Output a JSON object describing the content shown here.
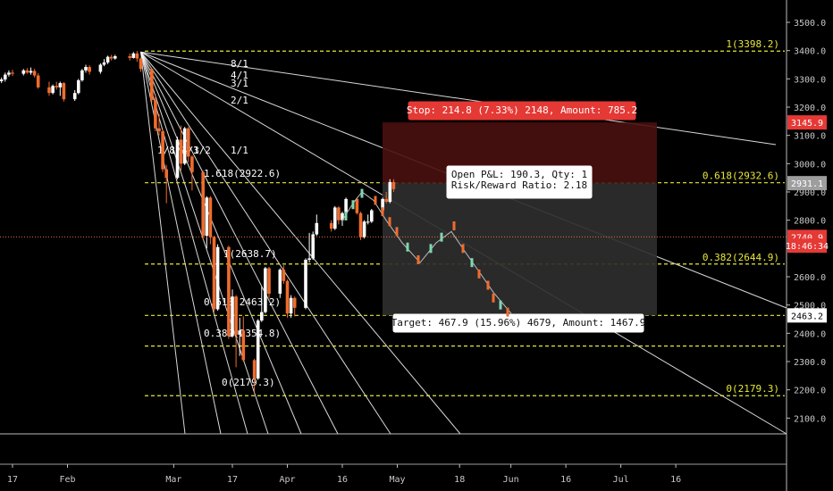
{
  "chart_data": {
    "type": "candlestick",
    "ylim": [
      2040,
      3540
    ],
    "xlabel": "",
    "ylabel": "",
    "title": "",
    "grid": false,
    "x_ticks": [
      {
        "label": "17",
        "date": "2020-01-17"
      },
      {
        "label": "Feb",
        "date": "2020-02-01"
      },
      {
        "label": "Mar",
        "date": "2020-03-01"
      },
      {
        "label": "17",
        "date": "2020-03-17"
      },
      {
        "label": "Apr",
        "date": "2020-04-01"
      },
      {
        "label": "16",
        "date": "2020-04-16"
      },
      {
        "label": "May",
        "date": "2020-05-01"
      },
      {
        "label": "18",
        "date": "2020-05-18"
      },
      {
        "label": "Jun",
        "date": "2020-06-01"
      },
      {
        "label": "16",
        "date": "2020-06-16"
      },
      {
        "label": "Jul",
        "date": "2020-07-01"
      },
      {
        "label": "16",
        "date": "2020-07-16"
      }
    ],
    "y_ticks": [
      2100,
      2200,
      2300,
      2400,
      2500,
      2600,
      2700,
      2800,
      2900,
      3000,
      3100,
      3200,
      3300,
      3400,
      3500
    ],
    "y_tick_labels": [
      "2100.0",
      "2200.0",
      "2300.0",
      "2400.0",
      "2500.0",
      "2600.0",
      "2700.0",
      "2800.0",
      "2900.0",
      "3000.0",
      "3100.0",
      "3200.0",
      "3300.0",
      "3400.0",
      "3500.0"
    ],
    "price_tags": [
      {
        "label": "3145.9",
        "value": 3145.9,
        "color": "#e53935"
      },
      {
        "label": "2931.1",
        "value": 2931.1,
        "color": "#9e9e9e"
      },
      {
        "label": "2740.9",
        "value": 2740.9,
        "color": "#e53935"
      },
      {
        "label": "18:46:34",
        "value": 2710,
        "color": "#e53935"
      },
      {
        "label": "2463.2",
        "value": 2463.2,
        "color": "#ffffff"
      }
    ],
    "current_price": 2740.9,
    "colors": {
      "up": "#ffffff",
      "down": "#ef6c2d",
      "fib": "#e8e83a",
      "fan": "#ffffff",
      "stop": "#e53935",
      "target_zone": "#3a3a3a"
    },
    "fib_levels_right": [
      {
        "label": "1(3398.2)",
        "value": 3398.2
      },
      {
        "label": "0.618(2932.6)",
        "value": 2932.6
      },
      {
        "label": "0.382(2644.9)",
        "value": 2644.9
      },
      {
        "label": "0(2179.3)",
        "value": 2179.3
      }
    ],
    "fib_levels_left": [
      {
        "label": "1.618(2922.6)",
        "value": 2922.6
      },
      {
        "label": "1(2638.7)",
        "value": 2638.7
      },
      {
        "label": "0.618(2463.2)",
        "value": 2463.2
      },
      {
        "label": "0.382(2354.8)",
        "value": 2354.8
      },
      {
        "label": "0(2179.3)",
        "value": 2179.3
      }
    ],
    "gann_fan": {
      "origin": {
        "date": "2020-02-21",
        "value": 3395
      },
      "labels": [
        "8/1",
        "4/1",
        "3/1",
        "2/1",
        "1/1",
        "1/8",
        "1/4",
        "1/3",
        "1/2"
      ]
    },
    "position": {
      "stop_text": "Stop: 214.8 (7.33%) 2148, Amount: 785.2",
      "pnl_text": "Open P&L: 190.3, Qty: 1",
      "rr_text": "Risk/Reward Ratio: 2.18",
      "target_text": "Target: 467.9 (15.96%) 4679, Amount: 1467.9",
      "entry": 2931.1,
      "stop": 3145.9,
      "target": 2463.2,
      "start_date": "2020-04-20",
      "end_date": "2020-06-30"
    },
    "candles": [
      {
        "date": "2020-01-13",
        "o": 3285,
        "h": 3300,
        "l": 3278,
        "c": 3292
      },
      {
        "date": "2020-01-14",
        "o": 3292,
        "h": 3305,
        "l": 3285,
        "c": 3298
      },
      {
        "date": "2020-01-15",
        "o": 3298,
        "h": 3322,
        "l": 3290,
        "c": 3315
      },
      {
        "date": "2020-01-16",
        "o": 3315,
        "h": 3330,
        "l": 3308,
        "c": 3322
      },
      {
        "date": "2020-01-17",
        "o": 3322,
        "h": 3332,
        "l": 3310,
        "c": 3318
      },
      {
        "date": "2020-01-20",
        "o": 3318,
        "h": 3335,
        "l": 3312,
        "c": 3330
      },
      {
        "date": "2020-01-21",
        "o": 3330,
        "h": 3338,
        "l": 3318,
        "c": 3322
      },
      {
        "date": "2020-01-22",
        "o": 3322,
        "h": 3340,
        "l": 3315,
        "c": 3328
      },
      {
        "date": "2020-01-23",
        "o": 3328,
        "h": 3335,
        "l": 3305,
        "c": 3312
      },
      {
        "date": "2020-01-24",
        "o": 3312,
        "h": 3320,
        "l": 3265,
        "c": 3270
      },
      {
        "date": "2020-01-27",
        "o": 3270,
        "h": 3290,
        "l": 3240,
        "c": 3250
      },
      {
        "date": "2020-01-28",
        "o": 3250,
        "h": 3280,
        "l": 3245,
        "c": 3275
      },
      {
        "date": "2020-01-29",
        "o": 3275,
        "h": 3290,
        "l": 3262,
        "c": 3270
      },
      {
        "date": "2020-01-30",
        "o": 3270,
        "h": 3290,
        "l": 3240,
        "c": 3285
      },
      {
        "date": "2020-01-31",
        "o": 3285,
        "h": 3288,
        "l": 3220,
        "c": 3228
      },
      {
        "date": "2020-02-03",
        "o": 3228,
        "h": 3260,
        "l": 3222,
        "c": 3250
      },
      {
        "date": "2020-02-04",
        "o": 3250,
        "h": 3300,
        "l": 3245,
        "c": 3295
      },
      {
        "date": "2020-02-05",
        "o": 3295,
        "h": 3335,
        "l": 3290,
        "c": 3330
      },
      {
        "date": "2020-02-06",
        "o": 3330,
        "h": 3350,
        "l": 3322,
        "c": 3342
      },
      {
        "date": "2020-02-07",
        "o": 3342,
        "h": 3348,
        "l": 3315,
        "c": 3325
      },
      {
        "date": "2020-02-10",
        "o": 3325,
        "h": 3355,
        "l": 3318,
        "c": 3350
      },
      {
        "date": "2020-02-11",
        "o": 3350,
        "h": 3370,
        "l": 3345,
        "c": 3358
      },
      {
        "date": "2020-02-12",
        "o": 3358,
        "h": 3382,
        "l": 3352,
        "c": 3378
      },
      {
        "date": "2020-02-13",
        "o": 3378,
        "h": 3385,
        "l": 3365,
        "c": 3372
      },
      {
        "date": "2020-02-14",
        "o": 3372,
        "h": 3385,
        "l": 3368,
        "c": 3380
      },
      {
        "date": "2020-02-18",
        "o": 3380,
        "h": 3390,
        "l": 3365,
        "c": 3374
      },
      {
        "date": "2020-02-19",
        "o": 3374,
        "h": 3395,
        "l": 3372,
        "c": 3390
      },
      {
        "date": "2020-02-20",
        "o": 3390,
        "h": 3398,
        "l": 3360,
        "c": 3372
      },
      {
        "date": "2020-02-21",
        "o": 3372,
        "h": 3375,
        "l": 3325,
        "c": 3335
      },
      {
        "date": "2020-02-24",
        "o": 3335,
        "h": 3338,
        "l": 3215,
        "c": 3225
      },
      {
        "date": "2020-02-25",
        "o": 3225,
        "h": 3245,
        "l": 3115,
        "c": 3125
      },
      {
        "date": "2020-02-26",
        "o": 3125,
        "h": 3175,
        "l": 3100,
        "c": 3115
      },
      {
        "date": "2020-02-27",
        "o": 3115,
        "h": 3120,
        "l": 2970,
        "c": 2980
      },
      {
        "date": "2020-02-28",
        "o": 2980,
        "h": 2995,
        "l": 2860,
        "c": 2950
      },
      {
        "date": "2020-03-02",
        "o": 2950,
        "h": 3095,
        "l": 2945,
        "c": 3085
      },
      {
        "date": "2020-03-03",
        "o": 3085,
        "h": 3135,
        "l": 2975,
        "c": 3000
      },
      {
        "date": "2020-03-04",
        "o": 3000,
        "h": 3130,
        "l": 2995,
        "c": 3125
      },
      {
        "date": "2020-03-05",
        "o": 3125,
        "h": 3130,
        "l": 3005,
        "c": 3025
      },
      {
        "date": "2020-03-06",
        "o": 3025,
        "h": 3030,
        "l": 2905,
        "c": 2970
      },
      {
        "date": "2020-03-09",
        "o": 2970,
        "h": 2975,
        "l": 2730,
        "c": 2745
      },
      {
        "date": "2020-03-10",
        "o": 2745,
        "h": 2885,
        "l": 2700,
        "c": 2880
      },
      {
        "date": "2020-03-11",
        "o": 2880,
        "h": 2885,
        "l": 2715,
        "c": 2740
      },
      {
        "date": "2020-03-12",
        "o": 2740,
        "h": 2745,
        "l": 2475,
        "c": 2485
      },
      {
        "date": "2020-03-13",
        "o": 2485,
        "h": 2715,
        "l": 2480,
        "c": 2705
      },
      {
        "date": "2020-03-16",
        "o": 2705,
        "h": 2710,
        "l": 2380,
        "c": 2390
      },
      {
        "date": "2020-03-17",
        "o": 2390,
        "h": 2555,
        "l": 2385,
        "c": 2530
      },
      {
        "date": "2020-03-18",
        "o": 2530,
        "h": 2535,
        "l": 2280,
        "c": 2395
      },
      {
        "date": "2020-03-19",
        "o": 2395,
        "h": 2455,
        "l": 2320,
        "c": 2410
      },
      {
        "date": "2020-03-20",
        "o": 2410,
        "h": 2460,
        "l": 2300,
        "c": 2305
      },
      {
        "date": "2020-03-23",
        "o": 2305,
        "h": 2310,
        "l": 2190,
        "c": 2240
      },
      {
        "date": "2020-03-24",
        "o": 2240,
        "h": 2450,
        "l": 2235,
        "c": 2445
      },
      {
        "date": "2020-03-25",
        "o": 2445,
        "h": 2565,
        "l": 2440,
        "c": 2475
      },
      {
        "date": "2020-03-26",
        "o": 2475,
        "h": 2635,
        "l": 2470,
        "c": 2630
      },
      {
        "date": "2020-03-27",
        "o": 2630,
        "h": 2635,
        "l": 2525,
        "c": 2540
      },
      {
        "date": "2020-03-30",
        "o": 2540,
        "h": 2630,
        "l": 2525,
        "c": 2625
      },
      {
        "date": "2020-03-31",
        "o": 2625,
        "h": 2640,
        "l": 2575,
        "c": 2585
      },
      {
        "date": "2020-04-01",
        "o": 2585,
        "h": 2590,
        "l": 2455,
        "c": 2470
      },
      {
        "date": "2020-04-02",
        "o": 2470,
        "h": 2535,
        "l": 2455,
        "c": 2525
      },
      {
        "date": "2020-04-03",
        "o": 2525,
        "h": 2530,
        "l": 2460,
        "c": 2490
      },
      {
        "date": "2020-04-06",
        "o": 2490,
        "h": 2665,
        "l": 2485,
        "c": 2660
      },
      {
        "date": "2020-04-07",
        "o": 2660,
        "h": 2755,
        "l": 2650,
        "c": 2665
      },
      {
        "date": "2020-04-08",
        "o": 2665,
        "h": 2760,
        "l": 2660,
        "c": 2750
      },
      {
        "date": "2020-04-09",
        "o": 2750,
        "h": 2820,
        "l": 2745,
        "c": 2790
      },
      {
        "date": "2020-04-13",
        "o": 2790,
        "h": 2800,
        "l": 2760,
        "c": 2770
      },
      {
        "date": "2020-04-14",
        "o": 2770,
        "h": 2850,
        "l": 2765,
        "c": 2845
      },
      {
        "date": "2020-04-15",
        "o": 2845,
        "h": 2850,
        "l": 2785,
        "c": 2800
      },
      {
        "date": "2020-04-16",
        "o": 2800,
        "h": 2830,
        "l": 2780,
        "c": 2825
      },
      {
        "date": "2020-04-17",
        "o": 2825,
        "h": 2880,
        "l": 2820,
        "c": 2875
      },
      {
        "date": "2020-04-20",
        "o": 2875,
        "h": 2880,
        "l": 2820,
        "c": 2825
      },
      {
        "date": "2020-04-21",
        "o": 2825,
        "h": 2830,
        "l": 2730,
        "c": 2740
      },
      {
        "date": "2020-04-22",
        "o": 2740,
        "h": 2800,
        "l": 2735,
        "c": 2795
      },
      {
        "date": "2020-04-23",
        "o": 2795,
        "h": 2820,
        "l": 2785,
        "c": 2795
      },
      {
        "date": "2020-04-24",
        "o": 2795,
        "h": 2840,
        "l": 2790,
        "c": 2835
      },
      {
        "date": "2020-04-27",
        "o": 2835,
        "h": 2880,
        "l": 2830,
        "c": 2875
      },
      {
        "date": "2020-04-28",
        "o": 2875,
        "h": 2900,
        "l": 2860,
        "c": 2865
      },
      {
        "date": "2020-04-29",
        "o": 2865,
        "h": 2945,
        "l": 2860,
        "c": 2935
      },
      {
        "date": "2020-04-30",
        "o": 2935,
        "h": 2945,
        "l": 2900,
        "c": 2910
      }
    ]
  }
}
